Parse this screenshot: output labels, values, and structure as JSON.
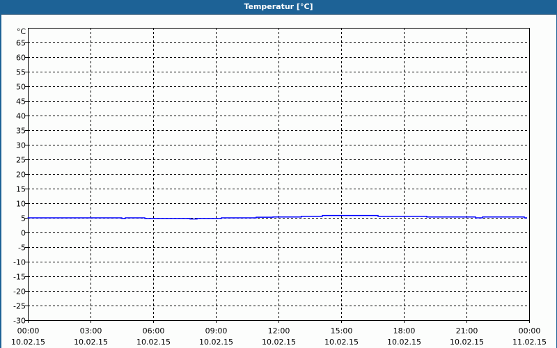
{
  "window": {
    "title": "Temperatur [°C]"
  },
  "chart_data": {
    "type": "line",
    "title": "Temperatur [°C]",
    "ylabel": "°C",
    "ylim": [
      -30,
      70
    ],
    "yticks": [
      65,
      60,
      55,
      50,
      45,
      40,
      35,
      30,
      25,
      20,
      15,
      10,
      5,
      0,
      -5,
      -10,
      -15,
      -20,
      -25,
      -30
    ],
    "xlim_hours": [
      0,
      24
    ],
    "xticks": [
      {
        "time": "00:00",
        "date": "10.02.15"
      },
      {
        "time": "03:00",
        "date": "10.02.15"
      },
      {
        "time": "06:00",
        "date": "10.02.15"
      },
      {
        "time": "09:00",
        "date": "10.02.15"
      },
      {
        "time": "12:00",
        "date": "10.02.15"
      },
      {
        "time": "15:00",
        "date": "10.02.15"
      },
      {
        "time": "18:00",
        "date": "10.02.15"
      },
      {
        "time": "21:00",
        "date": "10.02.15"
      },
      {
        "time": "00:00",
        "date": "11.02.15"
      }
    ],
    "grid": true,
    "series": [
      {
        "color": "#0000ff",
        "points": [
          [
            "00:00",
            5.0
          ],
          [
            "04:30",
            4.8
          ],
          [
            "04:40",
            5.0
          ],
          [
            "05:36",
            4.8
          ],
          [
            "07:46",
            4.6
          ],
          [
            "08:06",
            4.8
          ],
          [
            "09:16",
            5.0
          ],
          [
            "10:56",
            5.2
          ],
          [
            "11:44",
            5.3
          ],
          [
            "13:06",
            5.5
          ],
          [
            "14:06",
            5.8
          ],
          [
            "16:46",
            5.5
          ],
          [
            "19:06",
            5.3
          ],
          [
            "21:26",
            5.0
          ],
          [
            "21:46",
            5.3
          ],
          [
            "23:46",
            5.0
          ]
        ]
      }
    ]
  }
}
